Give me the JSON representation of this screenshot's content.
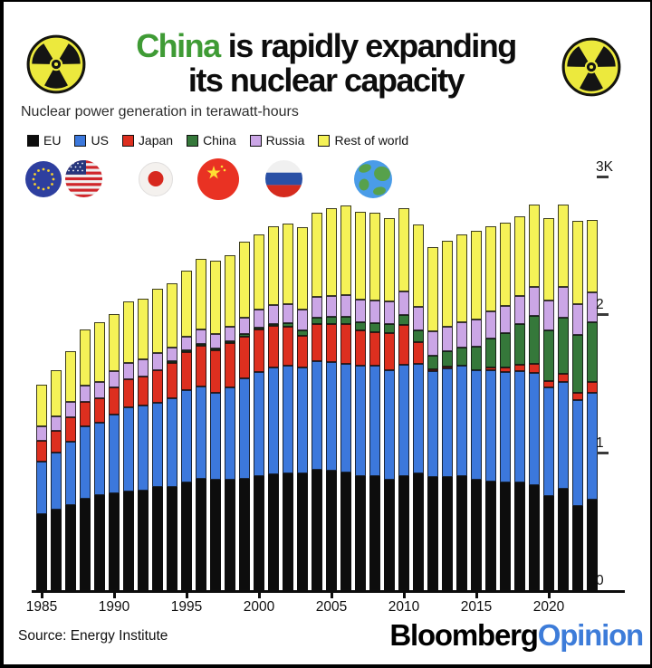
{
  "header": {
    "title_highlight": "China",
    "title_rest_line1": "is rapidly expanding",
    "title_line2": "its nuclear capacity",
    "highlight_color": "#3f9b35",
    "subtitle": "Nuclear power generation in terawatt-hours"
  },
  "legend": {
    "items": [
      {
        "label": "EU",
        "color": "#0d0d0d"
      },
      {
        "label": "US",
        "color": "#3c78dc"
      },
      {
        "label": "Japan",
        "color": "#dd2f1f"
      },
      {
        "label": "China",
        "color": "#35783a"
      },
      {
        "label": "Russia",
        "color": "#cba6e6"
      },
      {
        "label": "Rest of world",
        "color": "#f5f257"
      }
    ]
  },
  "flags": {
    "items": [
      "eu-flag",
      "us-flag",
      "japan-flag",
      "china-flag",
      "russia-flag",
      "earth-globe"
    ]
  },
  "chart_data": {
    "type": "bar",
    "stacked": true,
    "title": "China is rapidly expanding its nuclear capacity",
    "xlabel": "",
    "ylabel": "Nuclear power generation in terawatt-hours",
    "unit": "TWh",
    "grid": false,
    "legend_position": "top-left",
    "y_axis_side": "right",
    "ylim": [
      0,
      3000
    ],
    "x": [
      1985,
      1986,
      1987,
      1988,
      1989,
      1990,
      1991,
      1992,
      1993,
      1994,
      1995,
      1996,
      1997,
      1998,
      1999,
      2000,
      2001,
      2002,
      2003,
      2004,
      2005,
      2006,
      2007,
      2008,
      2009,
      2010,
      2011,
      2012,
      2013,
      2014,
      2015,
      2016,
      2017,
      2018,
      2019,
      2020,
      2021,
      2022,
      2023
    ],
    "x_ticks": [
      1985,
      1990,
      1995,
      2000,
      2005,
      2010,
      2015,
      2020
    ],
    "y_ticks": [
      {
        "label": "3K",
        "value": 3000
      },
      {
        "label": "2",
        "value": 2000
      },
      {
        "label": "1",
        "value": 1000
      },
      {
        "label": "0",
        "value": 0
      }
    ],
    "series": [
      {
        "name": "EU",
        "color": "#0d0d0d",
        "values": [
          551,
          583,
          619,
          663,
          687,
          700,
          715,
          720,
          750,
          750,
          780,
          805,
          800,
          800,
          810,
          830,
          844,
          850,
          850,
          872,
          870,
          855,
          825,
          825,
          800,
          830,
          850,
          820,
          820,
          830,
          800,
          790,
          780,
          780,
          765,
          684,
          733,
          609,
          660
        ]
      },
      {
        "name": "US",
        "color": "#3c78dc",
        "values": [
          384,
          414,
          455,
          527,
          529,
          577,
          613,
          619,
          610,
          640,
          673,
          675,
          629,
          674,
          728,
          754,
          769,
          780,
          764,
          788,
          782,
          787,
          806,
          806,
          799,
          807,
          790,
          769,
          789,
          797,
          797,
          806,
          805,
          808,
          809,
          790,
          778,
          772,
          775
        ]
      },
      {
        "name": "Japan",
        "color": "#dd2f1f",
        "values": [
          152,
          159,
          179,
          174,
          178,
          192,
          202,
          212,
          239,
          258,
          276,
          291,
          309,
          316,
          303,
          305,
          304,
          280,
          228,
          270,
          278,
          288,
          252,
          241,
          263,
          288,
          156,
          16,
          14,
          0,
          4,
          17,
          29,
          49,
          66,
          43,
          61,
          52,
          77
        ]
      },
      {
        "name": "China",
        "color": "#35783a",
        "values": [
          0,
          0,
          0,
          0,
          0,
          0,
          0,
          0,
          2,
          14,
          13,
          14,
          14,
          14,
          15,
          17,
          17,
          25,
          43,
          50,
          53,
          55,
          62,
          68,
          70,
          74,
          87,
          97,
          112,
          133,
          171,
          213,
          248,
          295,
          349,
          366,
          408,
          418,
          435
        ]
      },
      {
        "name": "Russia",
        "color": "#cba6e6",
        "values": [
          99,
          104,
          115,
          117,
          118,
          118,
          120,
          120,
          119,
          98,
          99,
          109,
          109,
          105,
          122,
          131,
          137,
          142,
          150,
          145,
          149,
          156,
          160,
          163,
          164,
          170,
          173,
          178,
          173,
          181,
          195,
          197,
          203,
          205,
          209,
          216,
          222,
          224,
          217
        ]
      },
      {
        "name": "Rest of world",
        "color": "#f5f257",
        "values": [
          303,
          336,
          368,
          412,
          433,
          414,
          446,
          440,
          466,
          466,
          480,
          513,
          530,
          523,
          548,
          545,
          567,
          584,
          600,
          614,
          636,
          652,
          643,
          632,
          601,
          599,
          597,
          610,
          625,
          637,
          646,
          618,
          598,
          573,
          598,
          601,
          598,
          604,
          522
        ]
      }
    ]
  },
  "footer": {
    "source": "Source: Energy Institute",
    "brand_black": "Bloomberg",
    "brand_accent": "Opinion",
    "accent_color": "#3d7cd9"
  }
}
